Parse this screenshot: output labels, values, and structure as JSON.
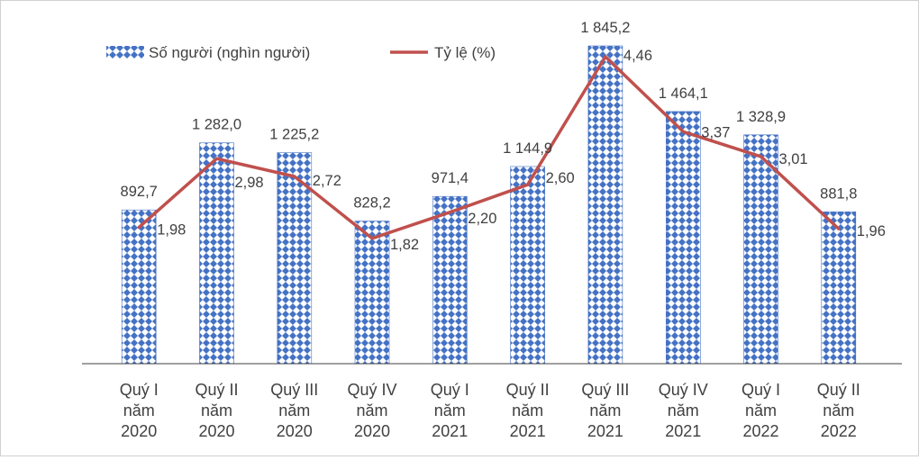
{
  "chart_data": {
    "type": "bar",
    "categories": [
      [
        "Quý I",
        "năm",
        "2020"
      ],
      [
        "Quý II",
        "năm",
        "2020"
      ],
      [
        "Quý III",
        "năm",
        "2020"
      ],
      [
        "Quý IV",
        "năm",
        "2020"
      ],
      [
        "Quý I",
        "năm",
        "2021"
      ],
      [
        "Quý II",
        "năm",
        "2021"
      ],
      [
        "Quý III",
        "năm",
        "2021"
      ],
      [
        "Quý IV",
        "năm",
        "2021"
      ],
      [
        "Quý I",
        "năm",
        "2022"
      ],
      [
        "Quý II",
        "năm",
        "2022"
      ]
    ],
    "series": [
      {
        "name": "Số người (nghìn người)",
        "type": "bar",
        "axis": "left",
        "color": "#4472c4",
        "values": [
          892.7,
          1282.0,
          1225.2,
          828.2,
          971.4,
          1144.9,
          1845.2,
          1464.1,
          1328.9,
          881.8
        ],
        "labels": [
          "892,7",
          "1 282,0",
          "1 225,2",
          "828,2",
          "971,4",
          "1 144,9",
          "1 845,2",
          "1 464,1",
          "1 328,9",
          "881,8"
        ]
      },
      {
        "name": "Tỷ lệ (%)",
        "type": "line",
        "axis": "right",
        "color": "#c0504d",
        "values": [
          1.98,
          2.98,
          2.72,
          1.82,
          2.2,
          2.6,
          4.46,
          3.37,
          3.01,
          1.96
        ],
        "labels": [
          "1,98",
          "2,98",
          "2,72",
          "1,82",
          "2,20",
          "2,60",
          "4,46",
          "3,37",
          "3,01",
          "1,96"
        ]
      }
    ],
    "title": "",
    "xlabel": "",
    "ylabel": "",
    "ylim_left": [
      0,
      1950
    ],
    "ylim_right": [
      0,
      5.5
    ],
    "grid": false,
    "legend": "top-left"
  }
}
